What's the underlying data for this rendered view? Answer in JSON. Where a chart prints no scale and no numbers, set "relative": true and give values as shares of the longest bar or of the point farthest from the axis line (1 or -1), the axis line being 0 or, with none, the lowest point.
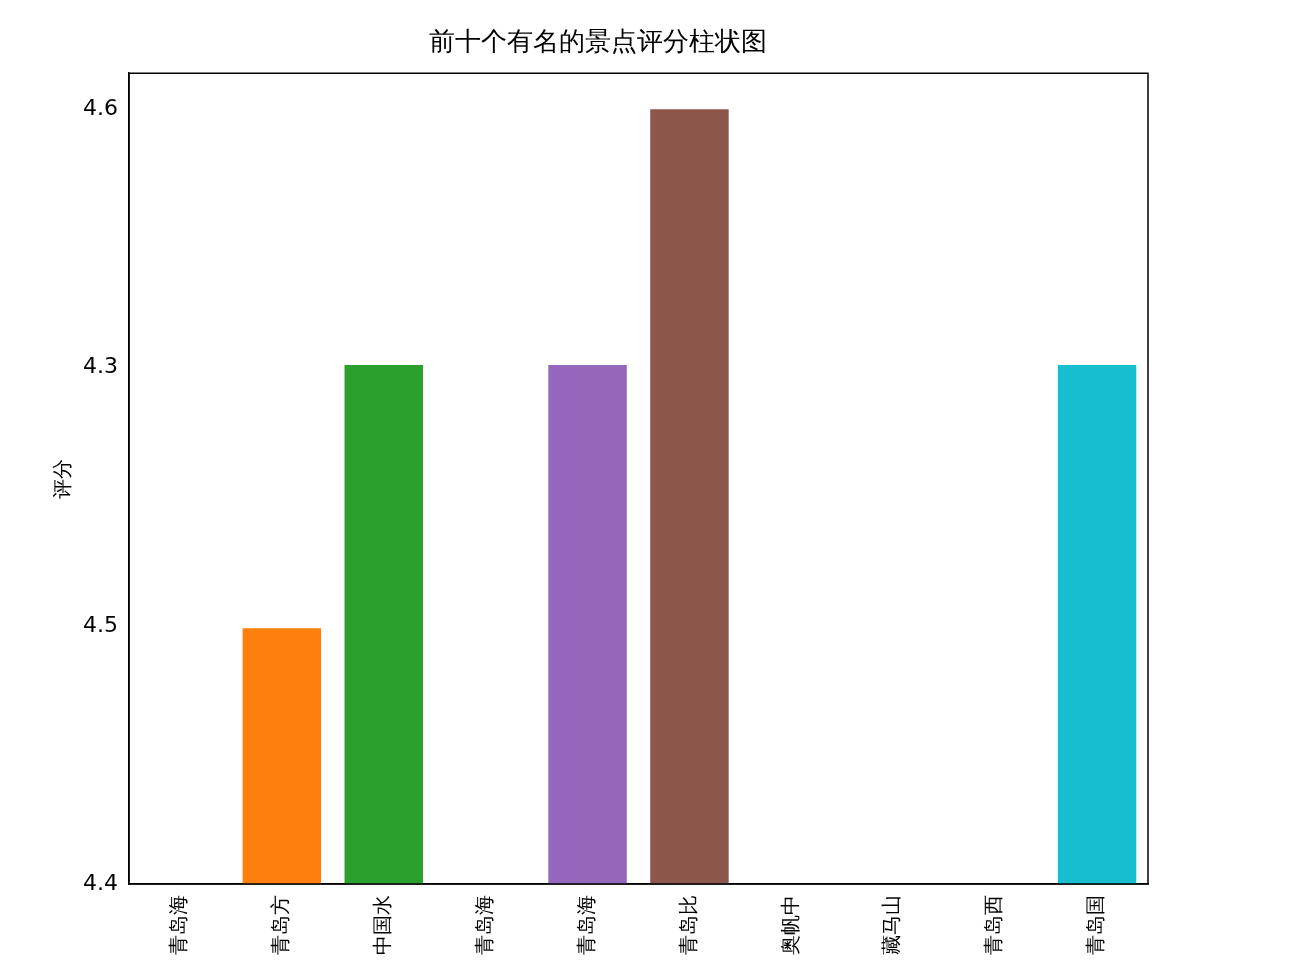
{
  "chart_data": {
    "type": "bar",
    "title": "前十个有名的景点评分柱状图",
    "ylabel": "评分",
    "categories": [
      "青岛海",
      "青岛方",
      "中国水",
      "青岛海",
      "青岛海",
      "青岛比",
      "奥帆中",
      "藏马山",
      "青岛西",
      "青岛国"
    ],
    "relative": true,
    "values": [
      0,
      0.33,
      0.67,
      0,
      0.67,
      1,
      0,
      0,
      0,
      0.67
    ],
    "colors": [
      "#1f77b4",
      "#ff7f0e",
      "#2ca02c",
      "#d62728",
      "#9467bd",
      "#8c564b",
      "#e377c2",
      "#7f7f7f",
      "#bcbd22",
      "#17becf"
    ],
    "y_categories": [
      "4.6",
      "4.3",
      "4.5",
      "4.4"
    ],
    "grid": false,
    "legend": false
  }
}
